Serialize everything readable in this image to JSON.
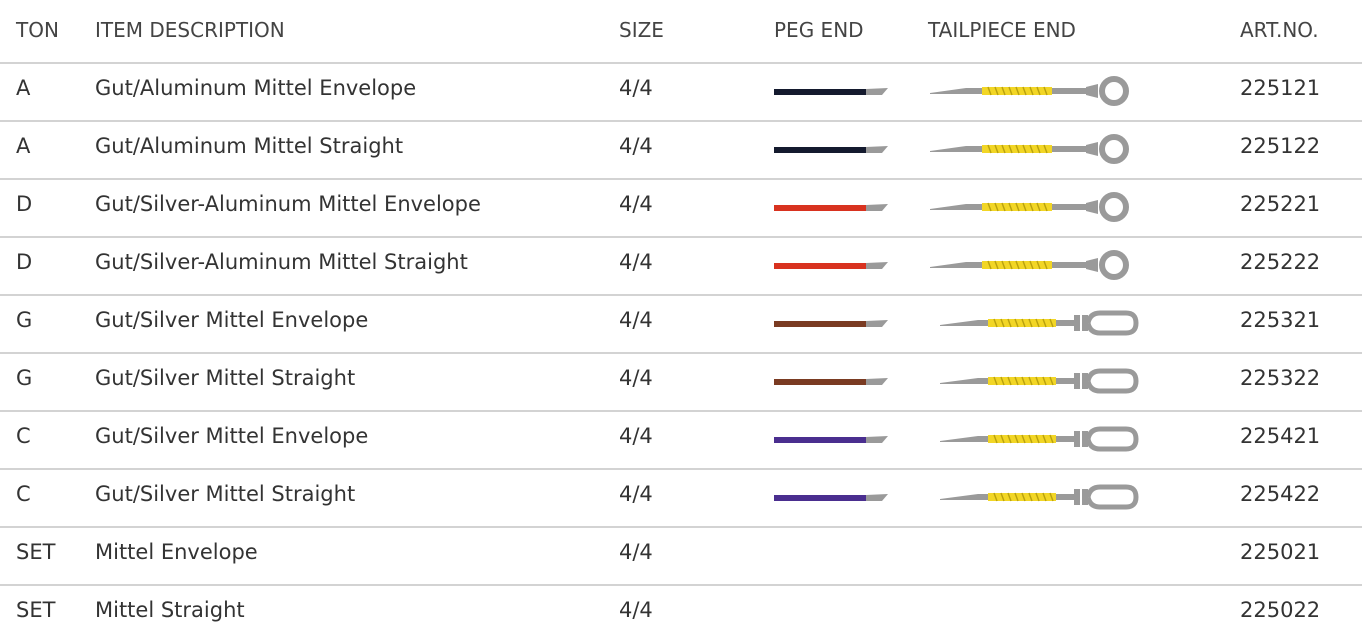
{
  "columns": {
    "ton": "TON",
    "description": "ITEM DESCRIPTION",
    "size": "SIZE",
    "peg_end": "PEG END",
    "tailpiece_end": "TAILPIECE END",
    "art_no": "ART.NO."
  },
  "rows": [
    {
      "ton": "A",
      "description": "Gut/Aluminum Mittel Envelope",
      "size": "4/4",
      "peg_color": "#141a2e",
      "tail_type": "ring",
      "art_no": "225121"
    },
    {
      "ton": "A",
      "description": "Gut/Aluminum Mittel Straight",
      "size": "4/4",
      "peg_color": "#141a2e",
      "tail_type": "ring",
      "art_no": "225122"
    },
    {
      "ton": "D",
      "description": "Gut/Silver-Aluminum Mittel Envelope",
      "size": "4/4",
      "peg_color": "#d8321f",
      "tail_type": "ring",
      "art_no": "225221"
    },
    {
      "ton": "D",
      "description": "Gut/Silver-Aluminum Mittel Straight",
      "size": "4/4",
      "peg_color": "#d8321f",
      "tail_type": "ring",
      "art_no": "225222"
    },
    {
      "ton": "G",
      "description": "Gut/Silver Mittel Envelope",
      "size": "4/4",
      "peg_color": "#7a3b22",
      "tail_type": "loop",
      "art_no": "225321"
    },
    {
      "ton": "G",
      "description": "Gut/Silver Mittel Straight",
      "size": "4/4",
      "peg_color": "#7a3b22",
      "tail_type": "loop",
      "art_no": "225322"
    },
    {
      "ton": "C",
      "description": "Gut/Silver Mittel Envelope",
      "size": "4/4",
      "peg_color": "#4a2e8f",
      "tail_type": "loop",
      "art_no": "225421"
    },
    {
      "ton": "C",
      "description": "Gut/Silver Mittel Straight",
      "size": "4/4",
      "peg_color": "#4a2e8f",
      "tail_type": "loop",
      "art_no": "225422"
    },
    {
      "ton": "SET",
      "description": "Mittel Envelope",
      "size": "4/4",
      "peg_color": "",
      "tail_type": "",
      "art_no": "225021"
    },
    {
      "ton": "SET",
      "description": "Mittel Straight",
      "size": "4/4",
      "peg_color": "",
      "tail_type": "",
      "art_no": "225022"
    }
  ],
  "icons": {
    "peg_end": "peg-end-string-icon",
    "tail_ring": "ball-ring-tailpiece-icon",
    "tail_loop": "loop-tailpiece-icon"
  },
  "colors": {
    "divider": "#d3d3d3",
    "winding": "#f2d626",
    "metal": "#9a9a9a"
  }
}
